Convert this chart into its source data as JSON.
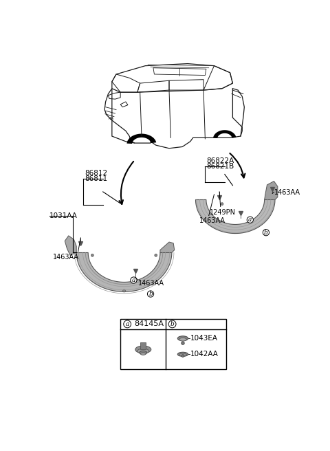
{
  "bg_color": "#ffffff",
  "fig_width": 4.8,
  "fig_height": 6.56,
  "dpi": 100,
  "labels": {
    "front_guard_top1": "86812",
    "front_guard_top2": "86811",
    "rear_guard_top1": "86822A",
    "rear_guard_top2": "86821B",
    "front_bolt_inner": "1463AA",
    "front_bolt_outer": "1463AA",
    "rear_bolt_right": "1463AA",
    "rear_bolt_left": "1463AA",
    "rear_pn": "1249PN",
    "front_bracket": "1031AA",
    "legend_a_label": "84145A",
    "legend_b1_label": "1043EA",
    "legend_b2_label": "1042AA"
  }
}
